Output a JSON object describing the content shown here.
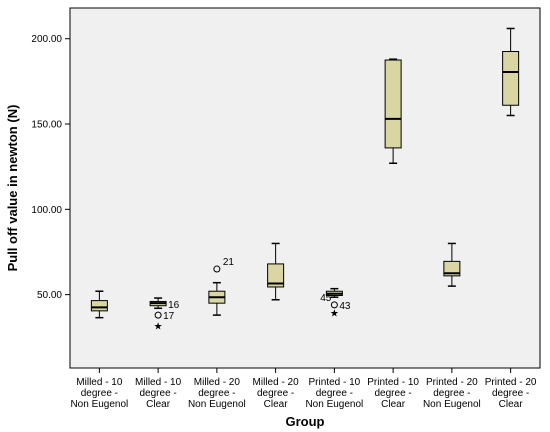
{
  "chart_data": {
    "type": "boxplot",
    "xlabel": "Group",
    "ylabel": "Pull off value in newton (N)",
    "ylim": [
      7,
      218
    ],
    "yticks": [
      50,
      100,
      150,
      200
    ],
    "ytick_labels": [
      "50.00",
      "100.00",
      "150.00",
      "200.00"
    ],
    "grid": false,
    "colors": {
      "plot_bg": "#f0f0f0",
      "box_fill": "#d9d6a4",
      "stroke": "#000000"
    },
    "categories": [
      {
        "label": [
          "Milled - 10",
          "degree -",
          "Non Eugenol"
        ],
        "whisker_low": 36.5,
        "q1": 40.5,
        "median": 42.5,
        "q3": 46.5,
        "whisker_high": 52
      },
      {
        "label": [
          "Milled - 10",
          "degree -",
          "Clear"
        ],
        "whisker_low": 42,
        "q1": 43.5,
        "median": 45,
        "q3": 46,
        "whisker_high": 48
      },
      {
        "label": [
          "Milled - 20",
          "degree -",
          "Non Eugenol"
        ],
        "whisker_low": 38,
        "q1": 45,
        "median": 48.5,
        "q3": 52,
        "whisker_high": 57
      },
      {
        "label": [
          "Milled - 20",
          "degree -",
          "Clear"
        ],
        "whisker_low": 47,
        "q1": 54.5,
        "median": 56.5,
        "q3": 68,
        "whisker_high": 80
      },
      {
        "label": [
          "Printed - 10",
          "degree -",
          "Non Eugenol"
        ],
        "whisker_low": 48.5,
        "q1": 49.5,
        "median": 50.5,
        "q3": 52,
        "whisker_high": 53.5
      },
      {
        "label": [
          "Printed - 10",
          "degree -",
          "Clear"
        ],
        "whisker_low": 127,
        "q1": 136,
        "median": 153,
        "q3": 187.5,
        "whisker_high": 188
      },
      {
        "label": [
          "Printed - 20",
          "degree -",
          "Non Eugenol"
        ],
        "whisker_low": 55,
        "q1": 61,
        "median": 62.5,
        "q3": 69.5,
        "whisker_high": 80
      },
      {
        "label": [
          "Printed - 20",
          "degree -",
          "Clear"
        ],
        "whisker_low": 155,
        "q1": 161,
        "median": 180.5,
        "q3": 192.5,
        "whisker_high": 206
      }
    ],
    "outliers": [
      {
        "category": 1,
        "value": 38,
        "marker": "circle",
        "label": "17"
      },
      {
        "category": 1,
        "value": 44.5,
        "marker": "none",
        "label": "16"
      },
      {
        "category": 1,
        "value": 32,
        "marker": "star",
        "label": ""
      },
      {
        "category": 2,
        "value": 65,
        "marker": "circle",
        "label": "21"
      },
      {
        "category": 4,
        "value": 48.5,
        "marker": "none",
        "label": "45"
      },
      {
        "category": 4,
        "value": 44,
        "marker": "circle",
        "label": "43"
      },
      {
        "category": 4,
        "value": 39.5,
        "marker": "star",
        "label": ""
      }
    ]
  }
}
